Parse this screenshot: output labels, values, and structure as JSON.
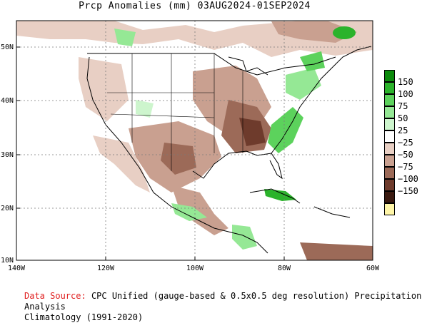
{
  "title": "Prcp Anomalies (mm) 03AUG2024-01SEP2024",
  "axes": {
    "lat_labels": [
      "50N",
      "40N",
      "30N",
      "20N",
      "10N"
    ],
    "lon_labels": [
      "140W",
      "120W",
      "100W",
      "80W",
      "60W"
    ]
  },
  "legend": {
    "entries": [
      {
        "label": "150",
        "color": "#0b8a0b"
      },
      {
        "label": "100",
        "color": "#2bb32b"
      },
      {
        "label": "75",
        "color": "#5cd25c"
      },
      {
        "label": "50",
        "color": "#95e895"
      },
      {
        "label": "25",
        "color": "#cdf5cd"
      },
      {
        "label": "−25",
        "color": "#ffffff"
      },
      {
        "label": "−50",
        "color": "#e8cfc4"
      },
      {
        "label": "−75",
        "color": "#c9a090"
      },
      {
        "label": "−100",
        "color": "#9c6a58"
      },
      {
        "label": "−150",
        "color": "#6e3b2c"
      },
      {
        "label": "",
        "color": "#3a1a10"
      },
      {
        "label": "",
        "color": "#fff6a8"
      }
    ]
  },
  "footer": {
    "source_label": "Data Source:",
    "source_text": "CPC Unified (gauge-based & 0.5x0.5 deg resolution) Precipitation Analysis",
    "climatology": "Climatology (1991-2020)"
  },
  "colors": {
    "dry_light": "#e8cfc4",
    "dry_mid": "#c9a090",
    "dry_dark": "#9c6a58",
    "dry_darkest": "#6e3b2c",
    "wet_light": "#95e895",
    "wet_mid": "#5cd25c",
    "wet_dark": "#2bb32b"
  }
}
